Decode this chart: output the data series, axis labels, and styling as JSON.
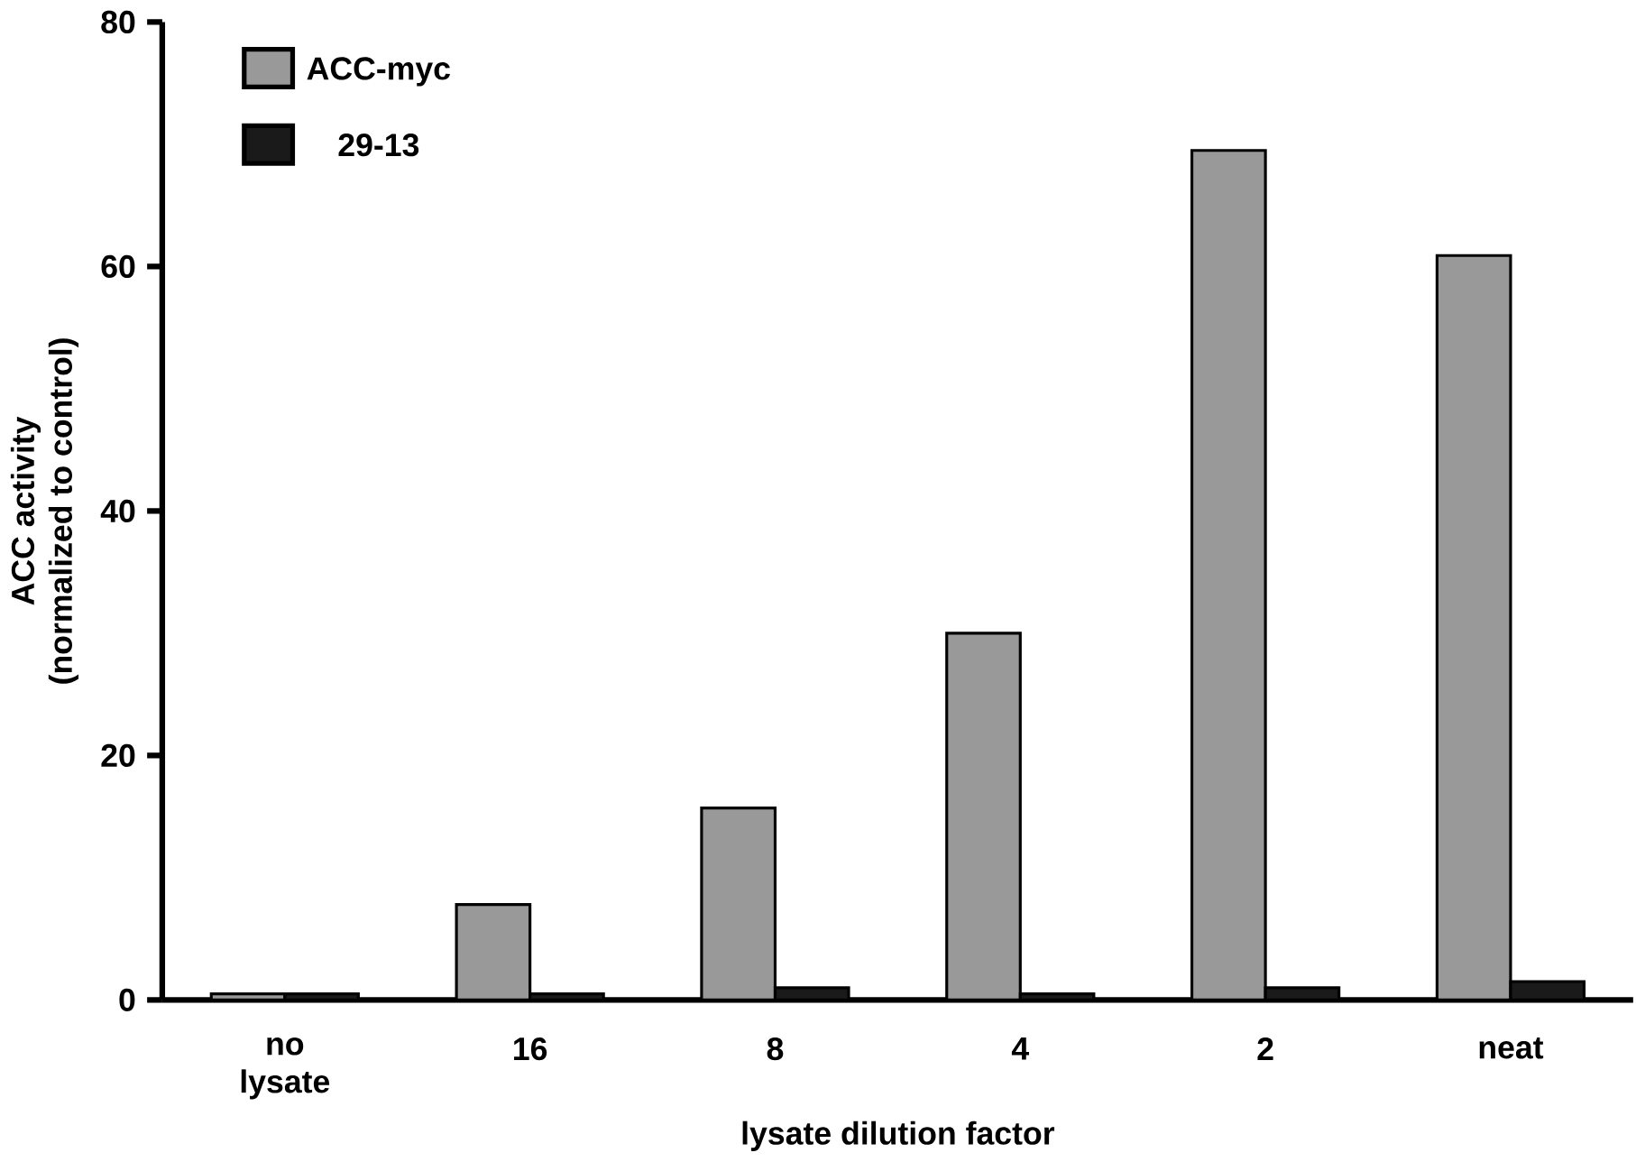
{
  "chart_data": {
    "type": "bar",
    "xlabel": "lysate dilution factor",
    "ylabel": "ACC activity\n(normalized to control)",
    "categories": [
      "no lysate",
      "16",
      "8",
      "4",
      "2",
      "neat"
    ],
    "series": [
      {
        "name": "ACC-myc",
        "color": "#999999",
        "values": [
          0.5,
          7.8,
          15.7,
          30,
          69.5,
          60.9
        ]
      },
      {
        "name": "29-13",
        "color": "#1a1a1a",
        "values": [
          0.5,
          0.5,
          1,
          0.5,
          1,
          1.5
        ]
      }
    ],
    "ylim": [
      0,
      80
    ],
    "yticks": [
      0,
      20,
      40,
      60,
      80
    ],
    "legend": "top left",
    "grid": false
  }
}
